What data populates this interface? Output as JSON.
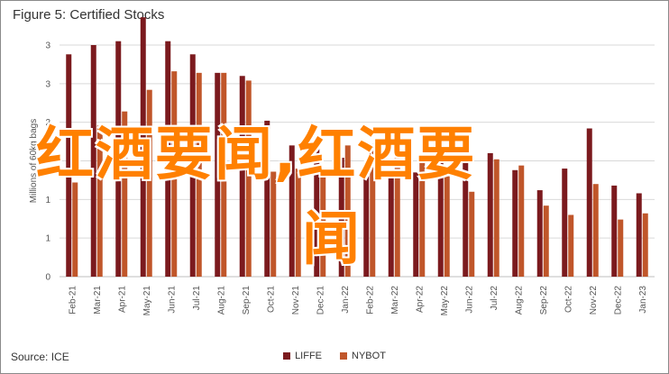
{
  "figure": {
    "title": "Figure 5: Certified Stocks",
    "source": "Source: ICE"
  },
  "overlay_text": {
    "line1": "红酒要闻,红酒要",
    "line2": "闻"
  },
  "chart_data": {
    "type": "bar",
    "title": "Figure 5: Certified Stocks",
    "xlabel": "",
    "ylabel": "Millions of 60kg bags",
    "ylim": [
      0,
      3
    ],
    "yticks": [
      "0",
      "1",
      "1",
      "2",
      "2",
      "3",
      "3"
    ],
    "ytick_values": [
      0,
      0.5,
      1,
      1.5,
      2,
      2.5,
      3
    ],
    "grid": true,
    "legend_position": "bottom",
    "categories": [
      "Feb-21",
      "Mar-21",
      "Apr-21",
      "May-21",
      "Jun-21",
      "Jul-21",
      "Aug-21",
      "Sep-21",
      "Oct-21",
      "Nov-21",
      "Dec-21",
      "Jan-22",
      "Feb-22",
      "Mar-22",
      "Apr-22",
      "May-22",
      "Jun-22",
      "Jul-22",
      "Aug-22",
      "Sep-22",
      "Oct-22",
      "Nov-22",
      "Dec-22",
      "Jan-23"
    ],
    "series": [
      {
        "name": "LIFFE",
        "color": "#7b1a1e",
        "values": [
          2.88,
          3.0,
          3.05,
          3.36,
          3.05,
          2.88,
          2.64,
          2.6,
          2.02,
          1.7,
          1.7,
          1.54,
          1.4,
          1.28,
          1.35,
          1.6,
          1.7,
          1.6,
          1.38,
          1.12,
          1.4,
          1.92,
          1.18,
          1.08
        ]
      },
      {
        "name": "NYBOT",
        "color": "#c0562a",
        "values": [
          1.22,
          1.96,
          2.14,
          2.42,
          2.66,
          2.64,
          2.64,
          2.54,
          1.36,
          1.4,
          1.3,
          1.7,
          1.72,
          1.6,
          1.5,
          1.3,
          1.1,
          1.52,
          1.44,
          0.92,
          0.8,
          1.2,
          0.74,
          0.82
        ]
      }
    ]
  }
}
